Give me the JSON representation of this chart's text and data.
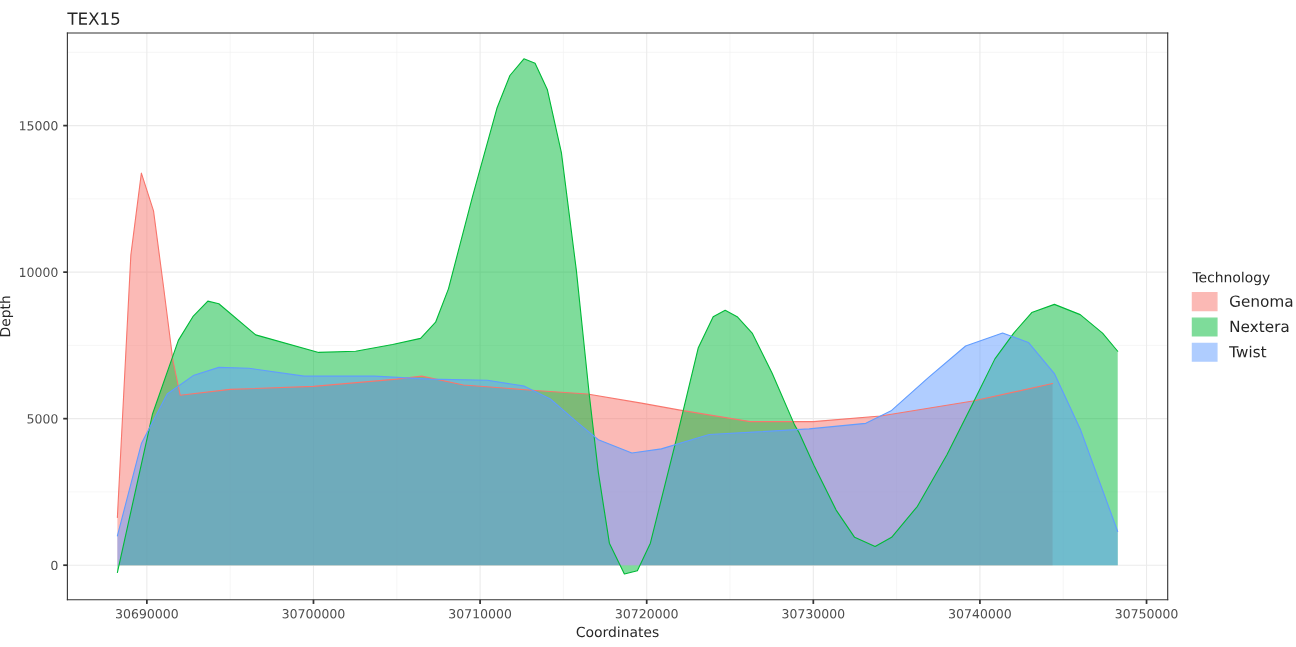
{
  "chart_data": {
    "type": "area",
    "title": "TEX15",
    "xlabel": "Coordinates",
    "ylabel": "Depth",
    "legend_title": "Technology",
    "legend": "right",
    "grid": true,
    "xlim": [
      30685230,
      30751270
    ],
    "ylim": [
      -1180,
      18160
    ],
    "xticks": [
      30690000,
      30700000,
      30710000,
      30720000,
      30730000,
      30740000,
      30750000
    ],
    "yticks": [
      0,
      5000,
      10000,
      15000
    ],
    "series": [
      {
        "name": "Genoma",
        "color": "#f8766d",
        "x": [
          30688230,
          30689040,
          30689670,
          30690400,
          30691000,
          30691560,
          30692000,
          30695000,
          30700000,
          30705000,
          30706500,
          30709000,
          30713100,
          30716440,
          30719680,
          30722000,
          30726210,
          30730000,
          30734040,
          30739580,
          30744360
        ],
        "values": [
          1630,
          10590,
          13380,
          12090,
          9500,
          7000,
          5800,
          6000,
          6100,
          6350,
          6450,
          6150,
          5970,
          5840,
          5530,
          5290,
          4900,
          4900,
          5090,
          5600,
          6200
        ]
      },
      {
        "name": "Nextera",
        "color": "#00ba38",
        "x": [
          30688230,
          30690340,
          30691890,
          30692760,
          30693660,
          30694320,
          30696530,
          30700310,
          30702530,
          30704750,
          30706430,
          30707330,
          30708100,
          30709540,
          30711010,
          30711790,
          30712630,
          30713300,
          30714040,
          30714880,
          30715780,
          30716560,
          30717100,
          30717760,
          30718660,
          30719440,
          30720220,
          30721770,
          30723090,
          30723990,
          30724710,
          30725430,
          30726330,
          30727530,
          30728880,
          30729150,
          30730050,
          30731370,
          30732480,
          30733710,
          30734700,
          30736250,
          30738020,
          30739580,
          30740900,
          30742030,
          30743110,
          30744470,
          30746020,
          30747360,
          30748270
        ],
        "values": [
          -250,
          5160,
          7670,
          8480,
          9010,
          8920,
          7860,
          7260,
          7300,
          7530,
          7740,
          8290,
          9430,
          12570,
          15590,
          16710,
          17280,
          17130,
          16220,
          14080,
          10050,
          5780,
          3160,
          750,
          -300,
          -190,
          750,
          4280,
          7410,
          8480,
          8700,
          8480,
          7920,
          6550,
          4780,
          4520,
          3390,
          1880,
          950,
          640,
          950,
          2010,
          3770,
          5530,
          7040,
          7920,
          8620,
          8900,
          8550,
          7920,
          7300
        ]
      },
      {
        "name": "Twist",
        "color": "#619cff",
        "x": [
          30688230,
          30689670,
          30691220,
          30692780,
          30694320,
          30696120,
          30699440,
          30703660,
          30706970,
          30710440,
          30712660,
          30714220,
          30715780,
          30717100,
          30719110,
          30720880,
          30723750,
          30726650,
          30729750,
          30733150,
          30734700,
          30736920,
          30739140,
          30741360,
          30742910,
          30744470,
          30746020,
          30748270
        ],
        "values": [
          1000,
          4150,
          5840,
          6470,
          6750,
          6720,
          6450,
          6450,
          6350,
          6310,
          6110,
          5670,
          4900,
          4280,
          3830,
          3970,
          4460,
          4550,
          4650,
          4840,
          5280,
          6410,
          7480,
          7920,
          7600,
          6540,
          4650,
          1150
        ]
      }
    ]
  }
}
